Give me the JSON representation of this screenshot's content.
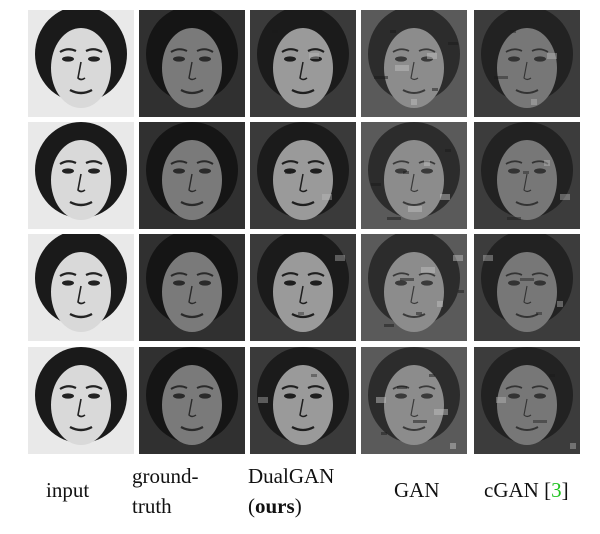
{
  "figure": {
    "rows": [
      {
        "row": 1
      },
      {
        "row": 2
      },
      {
        "row": 3
      },
      {
        "row": 4
      }
    ],
    "columns": [
      {
        "key": "input",
        "kind": "sketch",
        "caption_lines": [
          "input"
        ]
      },
      {
        "key": "ground-truth",
        "kind": "photo",
        "caption_lines": [
          "ground-",
          "truth"
        ]
      },
      {
        "key": "dualgan",
        "kind": "dualgan",
        "caption_lines": [
          "DualGAN"
        ],
        "caption_paren_open": "(",
        "caption_bold": "ours",
        "caption_paren_close": ")"
      },
      {
        "key": "gan",
        "kind": "gan",
        "caption_lines": [
          "GAN"
        ]
      },
      {
        "key": "cgan",
        "kind": "cgan",
        "caption_lines": [
          "cGAN ["
        ],
        "caption_ref": "3",
        "caption_ref_close": "]"
      }
    ],
    "colors": {
      "citation": "#22c322",
      "sketch_bg": "#e9e9e9",
      "photo_bg": "#303030",
      "gan_bg": "#5a5a5a",
      "cgan_bg": "#3c3c3c"
    }
  }
}
